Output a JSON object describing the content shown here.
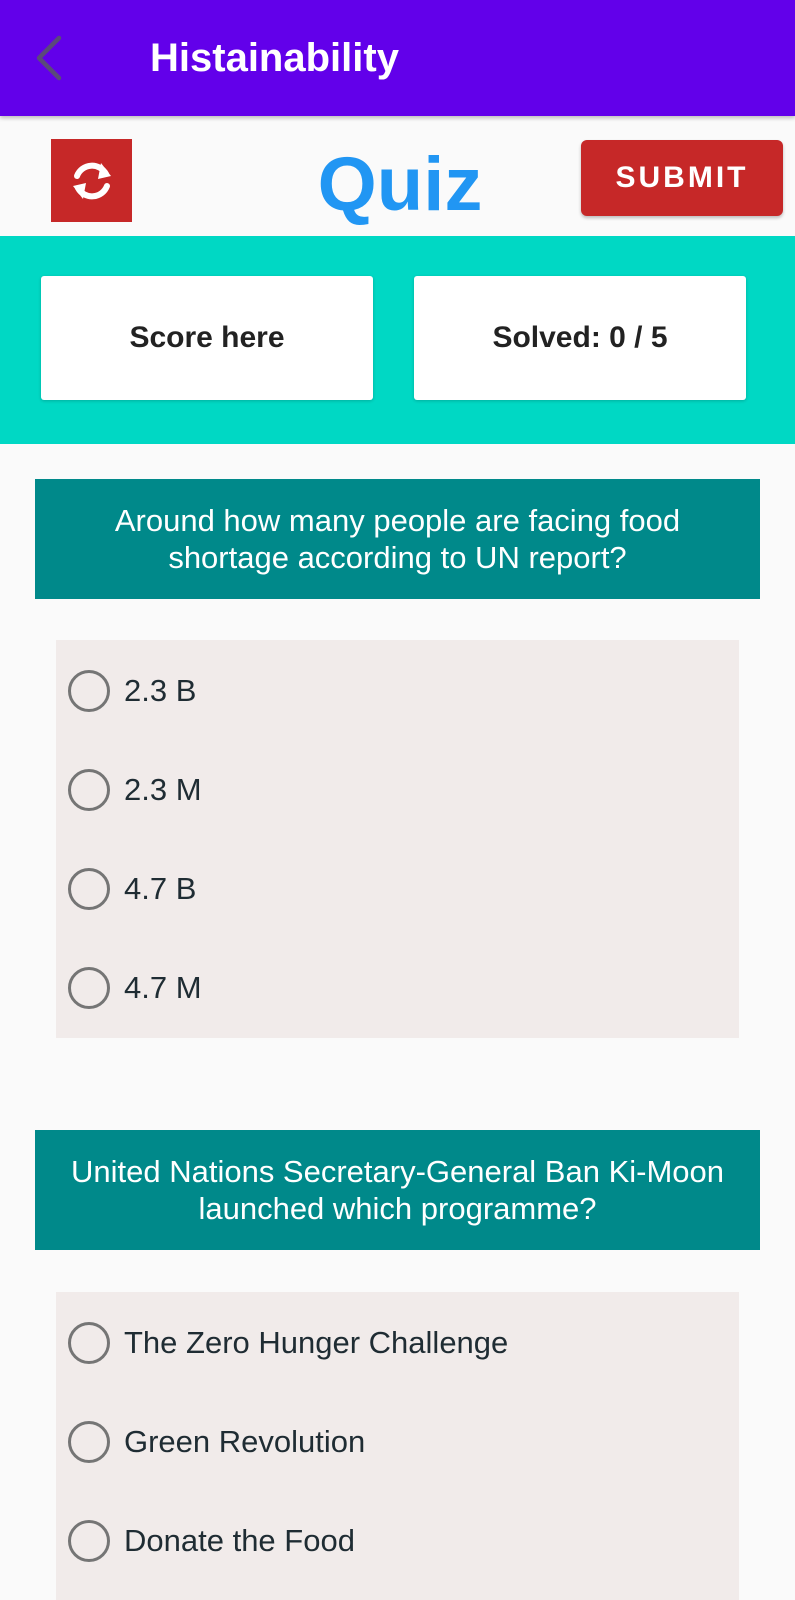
{
  "app_bar": {
    "title": "Histainability",
    "back_icon": "chevron-left-icon",
    "color": "#6200ea"
  },
  "toolbar": {
    "refresh_icon": "refresh-icon",
    "quiz_title": "Quiz",
    "submit_label": "SUBMIT"
  },
  "stats": {
    "score_label": "Score here",
    "solved_label": "Solved: 0 / 5"
  },
  "questions": [
    {
      "text": "Around how many people are facing food shortage according to UN report?",
      "options": [
        "2.3 B",
        "2.3 M",
        "4.7 B",
        "4.7 M"
      ],
      "selected": null
    },
    {
      "text": "United Nations Secretary-General Ban Ki-Moon launched which programme?",
      "options": [
        "The Zero Hunger Challenge",
        "Green Revolution",
        "Donate the Food"
      ],
      "selected": null
    }
  ],
  "colors": {
    "accent_red": "#c62828",
    "quiz_title_blue": "#2196f3",
    "band_teal": "#00d8c4",
    "question_teal": "#00898a"
  }
}
